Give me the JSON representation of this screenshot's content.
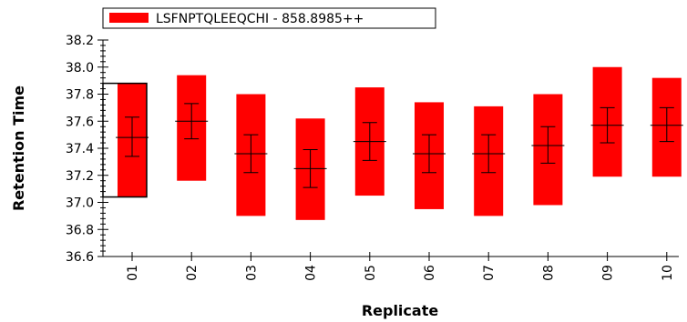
{
  "chart_data": {
    "type": "box",
    "legend": {
      "label": "LSFNPTQLEEQCHI - 858.8985++",
      "position": "top-left"
    },
    "xlabel": "Replicate",
    "ylabel": "Retention Time",
    "categories": [
      "01",
      "02",
      "03",
      "04",
      "05",
      "06",
      "07",
      "08",
      "09",
      "10"
    ],
    "ylim": [
      36.6,
      38.2
    ],
    "yticks": [
      "36.6",
      "36.8",
      "37.0",
      "37.2",
      "37.4",
      "37.6",
      "37.8",
      "38.0",
      "38.2"
    ],
    "series": [
      {
        "name": "LSFNPTQLEEQCHI - 858.8985++",
        "color": "#FF0000",
        "box_low": [
          37.04,
          37.16,
          36.9,
          36.87,
          37.05,
          36.95,
          36.9,
          36.98,
          37.19,
          37.19
        ],
        "box_high": [
          37.88,
          37.94,
          37.8,
          37.62,
          37.85,
          37.74,
          37.71,
          37.8,
          38.0,
          37.92
        ],
        "mean": [
          37.48,
          37.6,
          37.36,
          37.25,
          37.45,
          37.36,
          37.36,
          37.42,
          37.57,
          37.57
        ],
        "err_low": [
          37.34,
          37.47,
          37.22,
          37.11,
          37.31,
          37.22,
          37.22,
          37.29,
          37.44,
          37.45
        ],
        "err_high": [
          37.63,
          37.73,
          37.5,
          37.39,
          37.59,
          37.5,
          37.5,
          37.56,
          37.7,
          37.7
        ]
      }
    ],
    "selected_category": "01",
    "grid": false
  }
}
